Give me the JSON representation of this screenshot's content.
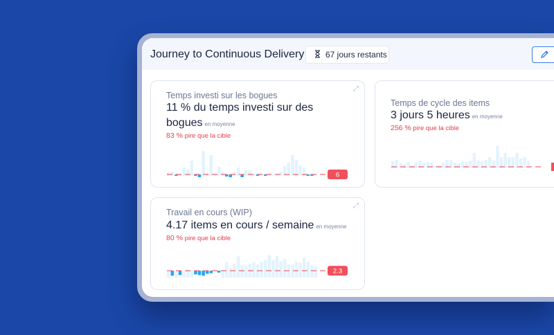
{
  "header": {
    "title": "Journey to Continuous Delivery",
    "badge": "67 jours restants",
    "badge_icon": "hourglass-icon",
    "edit_icon": "pencil-icon"
  },
  "colors": {
    "background": "#1a47a8",
    "bar": "#e3f3fd",
    "bar_good": "#2ba3f0",
    "target": "#f06a74",
    "flag": "#f0505c"
  },
  "cards": [
    {
      "subtitle": "Temps investi sur les bogues",
      "main": "11 % du temps investi sur des bogues",
      "note": "en moyenne",
      "pct": "83 %",
      "pct_text": " pire que la cible",
      "flag": "6",
      "target": 2,
      "values": [
        5,
        6,
        -2,
        3,
        12,
        9,
        22,
        -2,
        -4,
        36,
        4,
        30,
        3,
        13,
        6,
        -3,
        -4,
        6,
        12,
        -4,
        8,
        8,
        3,
        -1,
        3,
        -1,
        3,
        0,
        3,
        6,
        14,
        19,
        30,
        23,
        15,
        12,
        -1,
        -1
      ]
    },
    {
      "subtitle": "Temps de cycle des items",
      "main": "3 jours 5 heures",
      "note": "en moyenne",
      "pct": "256 %",
      "pct_text": " pire que la cible",
      "values": [
        10,
        12,
        7,
        6,
        9,
        4,
        8,
        11,
        8,
        9,
        8,
        4,
        4,
        8,
        12,
        12,
        8,
        7,
        10,
        9,
        11,
        22,
        11,
        10,
        12,
        16,
        11,
        32,
        16,
        22,
        16,
        16,
        22,
        14,
        16,
        10
      ],
      "target": 2
    },
    {
      "subtitle": "Travail en cours (WIP)",
      "main": "4.17 items en cours / semaine",
      "note": "en moyenne",
      "pct": "80 %",
      "pct_text": " pire que la cible",
      "flag": "2.3",
      "target": 11,
      "values": [
        10,
        -8,
        11,
        -7,
        9,
        13,
        12,
        -6,
        -7,
        -8,
        -5,
        -4,
        2,
        -3,
        12,
        25,
        15,
        22,
        34,
        20,
        19,
        22,
        25,
        21,
        25,
        28,
        36,
        28,
        35,
        26,
        30,
        21,
        21,
        25,
        24,
        32,
        26,
        20,
        18
      ]
    }
  ]
}
